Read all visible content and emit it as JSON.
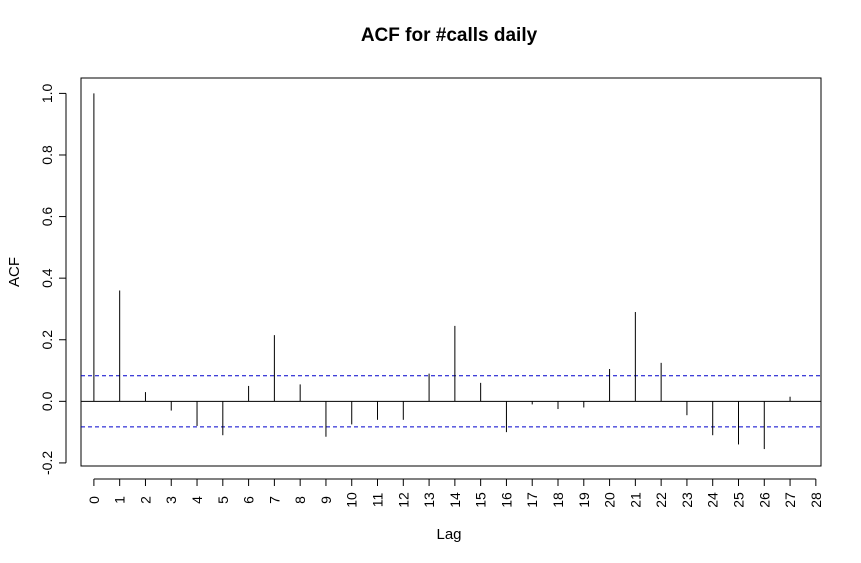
{
  "chart_data": {
    "type": "bar",
    "title": "ACF for #calls daily",
    "xlabel": "Lag",
    "ylabel": "ACF",
    "xlim": [
      -0.5,
      28.2
    ],
    "ylim": [
      -0.21,
      1.05
    ],
    "x_ticks": [
      0,
      1,
      2,
      3,
      4,
      5,
      6,
      7,
      8,
      9,
      10,
      11,
      12,
      13,
      14,
      15,
      16,
      17,
      18,
      19,
      20,
      21,
      22,
      23,
      24,
      25,
      26,
      27,
      28
    ],
    "y_ticks": [
      -0.2,
      0.0,
      0.2,
      0.4,
      0.6,
      0.8,
      1.0
    ],
    "y_tick_labels": [
      "-0.2",
      "0.0",
      "0.2",
      "0.4",
      "0.6",
      "0.8",
      "1.0"
    ],
    "lags": [
      0,
      1,
      2,
      3,
      4,
      5,
      6,
      7,
      8,
      9,
      10,
      11,
      12,
      13,
      14,
      15,
      16,
      17,
      18,
      19,
      20,
      21,
      22,
      23,
      24,
      25,
      26,
      27
    ],
    "values": [
      1.0,
      0.36,
      0.03,
      -0.03,
      -0.08,
      -0.11,
      0.05,
      0.215,
      0.055,
      -0.115,
      -0.075,
      -0.06,
      -0.06,
      0.09,
      0.245,
      0.06,
      -0.1,
      -0.01,
      -0.025,
      -0.02,
      0.105,
      0.29,
      0.125,
      -0.045,
      -0.11,
      -0.14,
      -0.155,
      0.015
    ],
    "confidence_band": 0.083,
    "zero_line": true,
    "grid": false,
    "colors": {
      "spike": "#000000",
      "confidence_line": "#0000cc",
      "frame": "#000000"
    }
  }
}
